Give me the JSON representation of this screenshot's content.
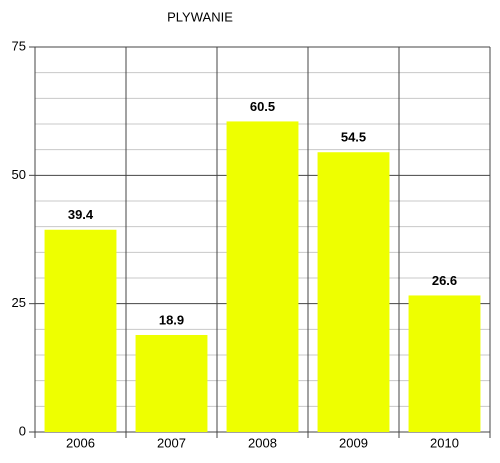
{
  "chart_data": {
    "type": "bar",
    "title": "PLYWANIE",
    "categories": [
      "2006",
      "2007",
      "2008",
      "2009",
      "2010"
    ],
    "values": [
      39.4,
      18.9,
      60.5,
      54.5,
      26.6
    ],
    "color": "#eeff00",
    "ylim": [
      0,
      75
    ],
    "yticks": [
      0,
      25,
      50,
      75
    ],
    "minor_yticks": [
      5,
      10,
      15,
      20,
      30,
      35,
      40,
      45,
      55,
      60,
      65,
      70
    ],
    "grid": true
  }
}
